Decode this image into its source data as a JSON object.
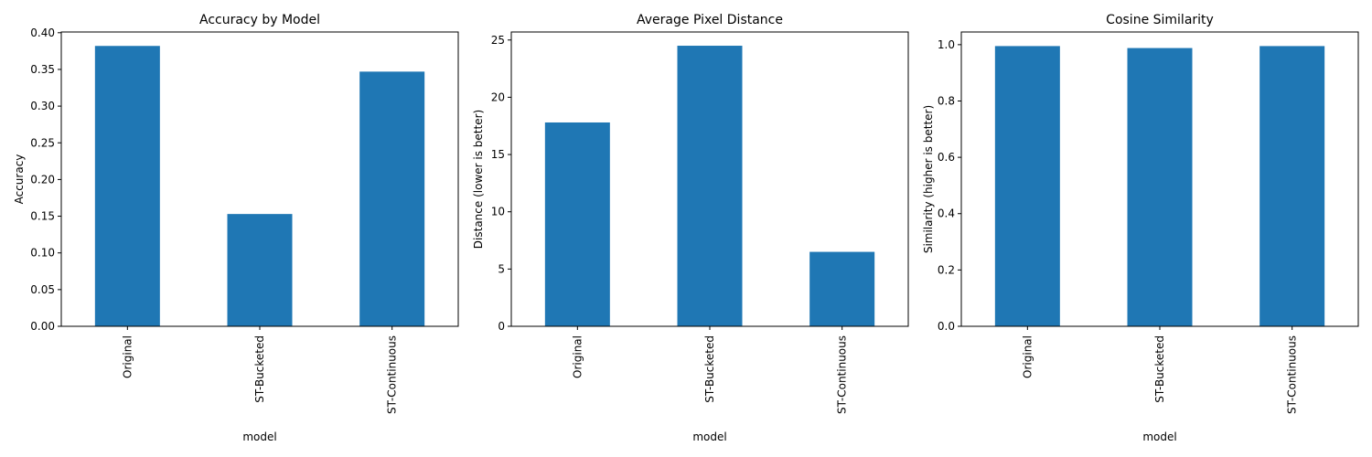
{
  "chart_data": [
    {
      "type": "bar",
      "title": "Accuracy by Model",
      "xlabel": "model",
      "ylabel": "Accuracy",
      "categories": [
        "Original",
        "ST-Bucketed",
        "ST-Continuous"
      ],
      "values": [
        0.382,
        0.153,
        0.347
      ],
      "ylim": [
        0,
        0.401
      ],
      "yticks": [
        0.0,
        0.05,
        0.1,
        0.15,
        0.2,
        0.25,
        0.3,
        0.35,
        0.4
      ],
      "ytick_labels": [
        "0.00",
        "0.05",
        "0.10",
        "0.15",
        "0.20",
        "0.25",
        "0.30",
        "0.35",
        "0.40"
      ],
      "color": "#1f77b4",
      "grid": false
    },
    {
      "type": "bar",
      "title": "Average Pixel Distance",
      "xlabel": "model",
      "ylabel": "Distance (lower is better)",
      "categories": [
        "Original",
        "ST-Bucketed",
        "ST-Continuous"
      ],
      "values": [
        17.8,
        24.5,
        6.5
      ],
      "ylim": [
        0,
        25.7
      ],
      "yticks": [
        0,
        5,
        10,
        15,
        20,
        25
      ],
      "ytick_labels": [
        "0",
        "5",
        "10",
        "15",
        "20",
        "25"
      ],
      "color": "#1f77b4",
      "grid": false
    },
    {
      "type": "bar",
      "title": "Cosine Similarity",
      "xlabel": "model",
      "ylabel": "Similarity (higher is better)",
      "categories": [
        "Original",
        "ST-Bucketed",
        "ST-Continuous"
      ],
      "values": [
        0.995,
        0.988,
        0.995
      ],
      "ylim": [
        0,
        1.045
      ],
      "yticks": [
        0.0,
        0.2,
        0.4,
        0.6,
        0.8,
        1.0
      ],
      "ytick_labels": [
        "0.0",
        "0.2",
        "0.4",
        "0.6",
        "0.8",
        "1.0"
      ],
      "color": "#1f77b4",
      "grid": false
    }
  ]
}
